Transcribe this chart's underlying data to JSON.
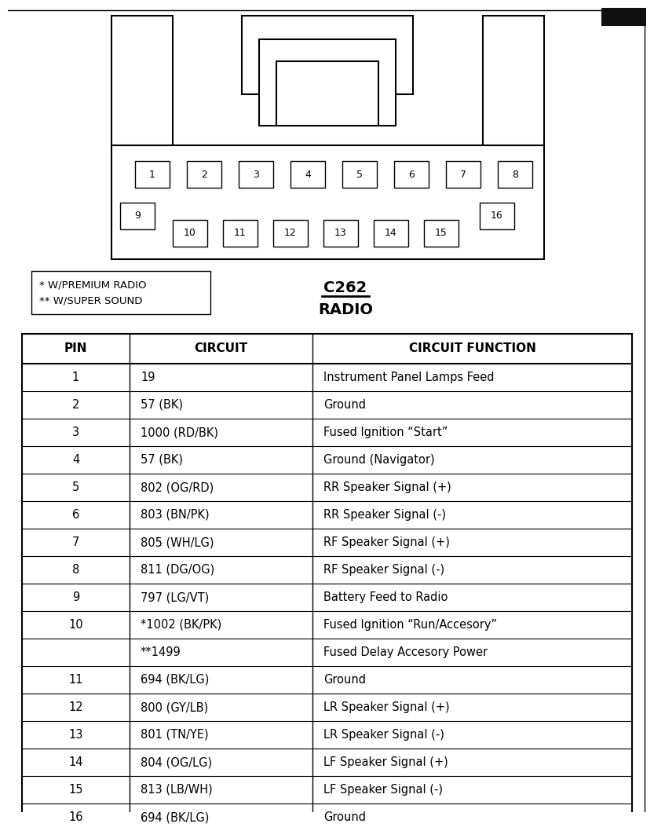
{
  "title_connector": "C262",
  "title_type": "RADIO",
  "legend_line1": "* W/PREMIUM RADIO",
  "legend_line2": "** W/SUPER SOUND",
  "bg_color": "#ffffff",
  "header_row": [
    "PIN",
    "CIRCUIT",
    "CIRCUIT FUNCTION"
  ],
  "table_rows": [
    [
      "1",
      "19",
      "Instrument Panel Lamps Feed"
    ],
    [
      "2",
      "57 (BK)",
      "Ground"
    ],
    [
      "3",
      "1000 (RD/BK)",
      "Fused Ignition “Start”"
    ],
    [
      "4",
      "57 (BK)",
      "Ground (Navigator)"
    ],
    [
      "5",
      "802 (OG/RD)",
      "RR Speaker Signal (+)"
    ],
    [
      "6",
      "803 (BN/PK)",
      "RR Speaker Signal (-)"
    ],
    [
      "7",
      "805 (WH/LG)",
      "RF Speaker Signal (+)"
    ],
    [
      "8",
      "811 (DG/OG)",
      "RF Speaker Signal (-)"
    ],
    [
      "9",
      "797 (LG/VT)",
      "Battery Feed to Radio"
    ],
    [
      "10",
      "*1002 (BK/PK)",
      "Fused Ignition “Run/Accesory”"
    ],
    [
      "",
      "**1499",
      "Fused Delay Accesory Power"
    ],
    [
      "11",
      "694 (BK/LG)",
      "Ground"
    ],
    [
      "12",
      "800 (GY/LB)",
      "LR Speaker Signal (+)"
    ],
    [
      "13",
      "801 (TN/YE)",
      "LR Speaker Signal (-)"
    ],
    [
      "14",
      "804 (OG/LG)",
      "LF Speaker Signal (+)"
    ],
    [
      "15",
      "813 (LB/WH)",
      "LF Speaker Signal (-)"
    ],
    [
      "16",
      "694 (BK/LG)",
      "Ground"
    ]
  ]
}
